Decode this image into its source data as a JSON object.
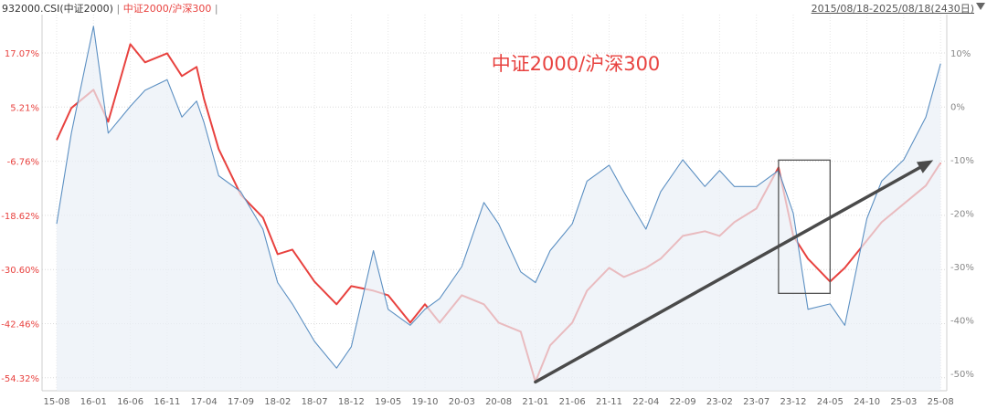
{
  "header": {
    "series1": "932000.CSI(中证2000)",
    "separator": "|",
    "series2": "中证2000/沪深300",
    "separator2": "|",
    "range": "2015/08/18-2025/08/18(2430日)",
    "dropdown_icon": "caret-down-icon"
  },
  "chart_data": {
    "type": "line",
    "title": "中证2000/沪深300",
    "x_tick_labels": [
      "15-08",
      "16-01",
      "16-06",
      "16-11",
      "17-04",
      "17-09",
      "18-02",
      "18-07",
      "18-12",
      "19-05",
      "19-10",
      "20-03",
      "20-08",
      "21-01",
      "21-06",
      "21-11",
      "22-04",
      "22-09",
      "23-02",
      "23-07",
      "23-12",
      "24-05",
      "24-10",
      "25-03",
      "25-08"
    ],
    "left_axis_ticks": [
      "17.07%",
      "5.21%",
      "-6.76%",
      "-18.62%",
      "-30.60%",
      "-42.46%",
      "-54.32%"
    ],
    "right_axis_ticks": [
      "10%",
      "0%",
      "-10%",
      "-20%",
      "-30%",
      "-40%",
      "-50%"
    ],
    "left_axis_values": [
      17.07,
      5.21,
      -6.76,
      -18.62,
      -30.6,
      -42.46,
      -54.32
    ],
    "right_axis_values": [
      10,
      0,
      -10,
      -20,
      -30,
      -40,
      -50
    ],
    "grid": true,
    "series": [
      {
        "axis": "left",
        "color": "#e8423f",
        "points": [
          [
            "15-08",
            -2
          ],
          [
            "15-10",
            5
          ],
          [
            "16-01",
            9
          ],
          [
            "16-03",
            2
          ],
          [
            "16-06",
            19
          ],
          [
            "16-08",
            15
          ],
          [
            "16-11",
            17
          ],
          [
            "17-01",
            12
          ],
          [
            "17-03",
            14
          ],
          [
            "17-04",
            7
          ],
          [
            "17-06",
            -4
          ],
          [
            "17-09",
            -14
          ],
          [
            "17-12",
            -19
          ],
          [
            "18-02",
            -27
          ],
          [
            "18-04",
            -26
          ],
          [
            "18-07",
            -33
          ],
          [
            "18-10",
            -38
          ],
          [
            "18-12",
            -34
          ],
          [
            "19-03",
            -35
          ],
          [
            "19-05",
            -36
          ],
          [
            "19-08",
            -42
          ],
          [
            "19-10",
            -38
          ],
          [
            "19-12",
            -42
          ],
          [
            "20-03",
            -36
          ],
          [
            "20-06",
            -38
          ],
          [
            "20-08",
            -42
          ],
          [
            "20-11",
            -44
          ],
          [
            "21-01",
            -55
          ],
          [
            "21-03",
            -47
          ],
          [
            "21-06",
            -42
          ],
          [
            "21-08",
            -35
          ],
          [
            "21-11",
            -30
          ],
          [
            "22-01",
            -32
          ],
          [
            "22-04",
            -30
          ],
          [
            "22-06",
            -28
          ],
          [
            "22-09",
            -23
          ],
          [
            "22-12",
            -22
          ],
          [
            "23-02",
            -23
          ],
          [
            "23-04",
            -20
          ],
          [
            "23-07",
            -17
          ],
          [
            "23-10",
            -8
          ],
          [
            "23-12",
            -23
          ],
          [
            "24-02",
            -28
          ],
          [
            "24-05",
            -33
          ],
          [
            "24-07",
            -30
          ],
          [
            "24-10",
            -24
          ],
          [
            "24-12",
            -20
          ],
          [
            "25-03",
            -16
          ],
          [
            "25-06",
            -12
          ],
          [
            "25-08",
            -7
          ]
        ]
      },
      {
        "axis": "right",
        "color": "#5b8fc2",
        "points": [
          [
            "15-08",
            -22
          ],
          [
            "15-10",
            -5
          ],
          [
            "16-01",
            15
          ],
          [
            "16-03",
            -5
          ],
          [
            "16-06",
            0
          ],
          [
            "16-08",
            3
          ],
          [
            "16-11",
            5
          ],
          [
            "17-01",
            -2
          ],
          [
            "17-03",
            1
          ],
          [
            "17-04",
            -3
          ],
          [
            "17-06",
            -13
          ],
          [
            "17-09",
            -16
          ],
          [
            "17-12",
            -23
          ],
          [
            "18-02",
            -33
          ],
          [
            "18-04",
            -37
          ],
          [
            "18-07",
            -44
          ],
          [
            "18-10",
            -49
          ],
          [
            "18-12",
            -45
          ],
          [
            "19-03",
            -27
          ],
          [
            "19-05",
            -38
          ],
          [
            "19-08",
            -41
          ],
          [
            "19-10",
            -38
          ],
          [
            "19-12",
            -36
          ],
          [
            "20-03",
            -30
          ],
          [
            "20-06",
            -18
          ],
          [
            "20-08",
            -22
          ],
          [
            "20-11",
            -31
          ],
          [
            "21-01",
            -33
          ],
          [
            "21-03",
            -27
          ],
          [
            "21-06",
            -22
          ],
          [
            "21-08",
            -14
          ],
          [
            "21-11",
            -11
          ],
          [
            "22-01",
            -16
          ],
          [
            "22-04",
            -23
          ],
          [
            "22-06",
            -16
          ],
          [
            "22-09",
            -10
          ],
          [
            "22-12",
            -15
          ],
          [
            "23-02",
            -12
          ],
          [
            "23-04",
            -15
          ],
          [
            "23-07",
            -15
          ],
          [
            "23-10",
            -12
          ],
          [
            "23-12",
            -20
          ],
          [
            "24-02",
            -38
          ],
          [
            "24-05",
            -37
          ],
          [
            "24-07",
            -41
          ],
          [
            "24-10",
            -21
          ],
          [
            "24-12",
            -14
          ],
          [
            "25-03",
            -10
          ],
          [
            "25-06",
            -2
          ],
          [
            "25-08",
            8
          ]
        ]
      }
    ],
    "annotations": [
      {
        "type": "rectangle",
        "from": [
          "23-10",
          -6.4
        ],
        "to": [
          "24-05",
          -35.6
        ],
        "axis": "left"
      },
      {
        "type": "arrow",
        "from": [
          "21-01",
          -55
        ],
        "to": [
          "25-08",
          -6.4
        ],
        "axis": "left"
      }
    ]
  }
}
